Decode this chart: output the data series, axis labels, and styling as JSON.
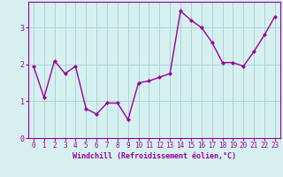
{
  "x": [
    0,
    1,
    2,
    3,
    4,
    5,
    6,
    7,
    8,
    9,
    10,
    11,
    12,
    13,
    14,
    15,
    16,
    17,
    18,
    19,
    20,
    21,
    22,
    23
  ],
  "y": [
    1.95,
    1.1,
    2.1,
    1.75,
    1.95,
    0.8,
    0.65,
    0.95,
    0.95,
    0.5,
    1.5,
    1.55,
    1.65,
    1.75,
    3.45,
    3.2,
    3.0,
    2.6,
    2.05,
    2.05,
    1.95,
    2.35,
    2.8,
    3.3
  ],
  "line_color": "#990099",
  "marker": "D",
  "marker_size": 2,
  "bg_color": "#d6f0f0",
  "grid_color": "#aad4d4",
  "xlabel": "Windchill (Refroidissement éolien,°C)",
  "xlim": [
    -0.5,
    23.5
  ],
  "ylim": [
    0,
    3.7
  ],
  "yticks": [
    0,
    1,
    2,
    3
  ],
  "xtick_labels": [
    "0",
    "1",
    "2",
    "3",
    "4",
    "5",
    "6",
    "7",
    "8",
    "9",
    "10",
    "11",
    "12",
    "13",
    "14",
    "15",
    "16",
    "17",
    "18",
    "19",
    "20",
    "21",
    "22",
    "23"
  ],
  "xlabel_fontsize": 6.0,
  "tick_fontsize": 5.5,
  "line_width": 1.0
}
